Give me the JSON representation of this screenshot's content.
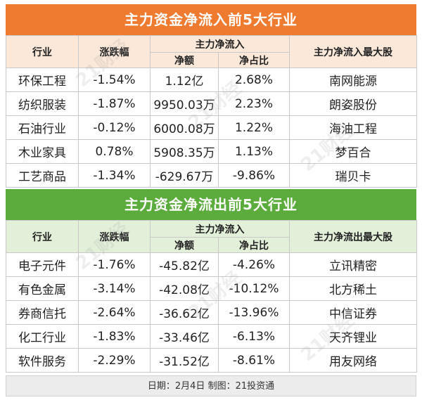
{
  "inflow": {
    "title": "主力资金净流入前5大行业",
    "headers": {
      "industry": "行业",
      "change": "涨跌幅",
      "group": "主力净流入",
      "amount": "净额",
      "ratio": "净占比",
      "top": "主力净流入最大股"
    },
    "rows": [
      {
        "industry": "环保工程",
        "change": "-1.54%",
        "amount": "1.12亿",
        "ratio": "2.68%",
        "top": "南网能源"
      },
      {
        "industry": "纺织服装",
        "change": "-1.87%",
        "amount": "9950.03万",
        "ratio": "2.23%",
        "top": "朗姿股份"
      },
      {
        "industry": "石油行业",
        "change": "-0.12%",
        "amount": "6000.08万",
        "ratio": "1.22%",
        "top": "海油工程"
      },
      {
        "industry": "木业家具",
        "change": "0.78%",
        "amount": "5908.35万",
        "ratio": "1.13%",
        "top": "梦百合"
      },
      {
        "industry": "工艺商品",
        "change": "-1.34%",
        "amount": "-629.67万",
        "ratio": "-9.86%",
        "top": "瑞贝卡"
      }
    ]
  },
  "outflow": {
    "title": "主力资金净流出前5大行业",
    "headers": {
      "industry": "行业",
      "change": "涨跌幅",
      "group": "主力净流入",
      "amount": "净额",
      "ratio": "净占比",
      "top": "主力净流出最大股"
    },
    "rows": [
      {
        "industry": "电子元件",
        "change": "-1.76%",
        "amount": "-45.82亿",
        "ratio": "-4.26%",
        "top": "立讯精密"
      },
      {
        "industry": "有色金属",
        "change": "-3.14%",
        "amount": "-42.08亿",
        "ratio": "-10.12%",
        "top": "北方稀土"
      },
      {
        "industry": "券商信托",
        "change": "-2.64%",
        "amount": "-36.62亿",
        "ratio": "-13.96%",
        "top": "中信证券"
      },
      {
        "industry": "化工行业",
        "change": "-1.83%",
        "amount": "-33.46亿",
        "ratio": "-6.13%",
        "top": "天齐锂业"
      },
      {
        "industry": "软件服务",
        "change": "-2.29%",
        "amount": "-31.52亿",
        "ratio": "-8.61%",
        "top": "用友网络"
      }
    ]
  },
  "footer": "日期：2月4日 制图：21投资通",
  "watermark": "21财经",
  "colors": {
    "inflow_banner": "#ef7b30",
    "outflow_banner": "#5bac3c"
  }
}
